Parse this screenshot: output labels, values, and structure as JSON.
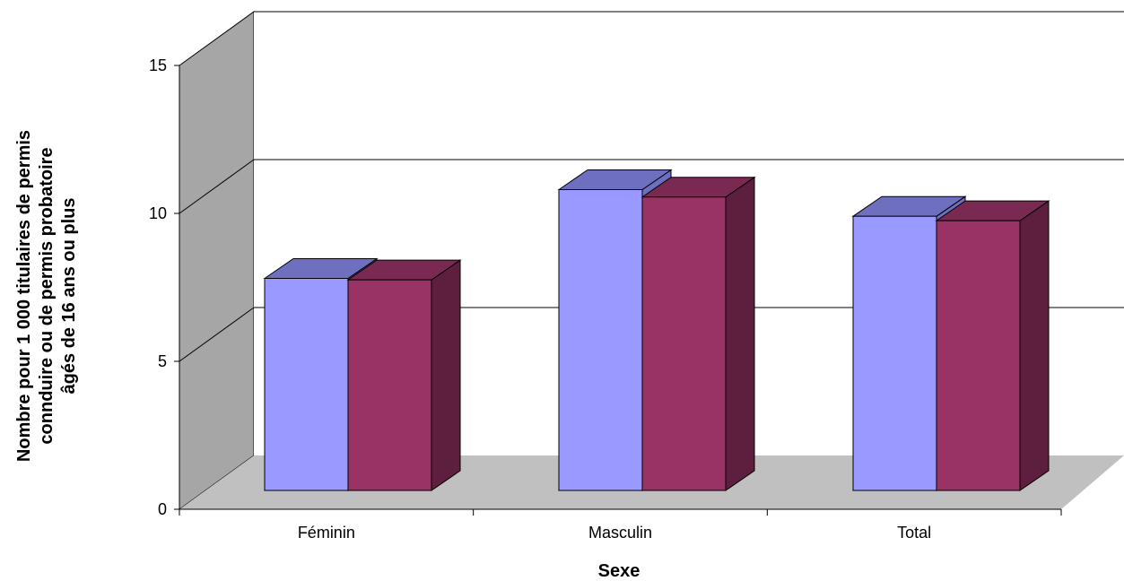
{
  "chart_data": {
    "type": "bar",
    "title": "",
    "xlabel": "Sexe",
    "ylabel_lines": [
      "Nombre pour 1 000 titulaires de permis",
      "connduire ou de permis probatoire",
      "âgés de 16 ans ou plus"
    ],
    "categories": [
      "Féminin",
      "Masculin",
      "Total"
    ],
    "y_ticks": [
      "0",
      "5",
      "10",
      "15"
    ],
    "ylim": [
      0,
      15
    ],
    "series": [
      {
        "values": [
          7.5,
          10.5,
          9.6
        ],
        "color": "#9999FF"
      },
      {
        "values": [
          7.45,
          10.25,
          9.45
        ],
        "color": "#993366"
      }
    ],
    "grid": true,
    "legend": "none",
    "colors": {
      "back_wall": "#FFFFFF",
      "side_wall": "#A6A6A6",
      "floor": "#C0C0C0",
      "series1_top": "#6F6FC0",
      "series2_side": "#5E1F3F"
    }
  }
}
